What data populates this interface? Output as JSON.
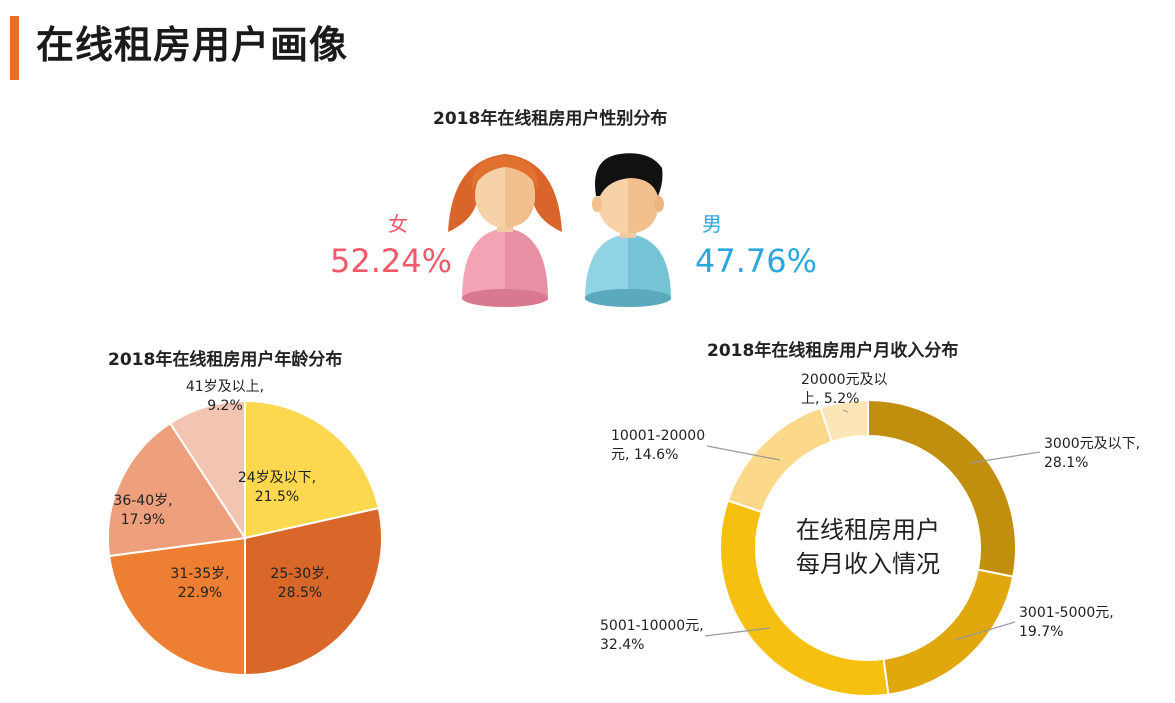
{
  "page": {
    "title": "在线租房用户画像"
  },
  "gender": {
    "title": "2018年在线租房用户性别分布",
    "female": {
      "label": "女",
      "pct": "52.24%",
      "value": 52.24
    },
    "male": {
      "label": "男",
      "pct": "47.76%",
      "value": 47.76
    }
  },
  "colors": {
    "accent": "#ee6b2d",
    "female": "#ef5a6b",
    "male": "#2aa7dc"
  },
  "chart_data": [
    {
      "type": "pie",
      "title": "2018年在线租房用户年龄分布",
      "slices": [
        {
          "label": "24岁及以下",
          "value": 21.5,
          "text": [
            "24岁及以下,",
            "21.5%"
          ],
          "color": "#fcd84f"
        },
        {
          "label": "25-30岁",
          "value": 28.5,
          "text": [
            "25-30岁,",
            "28.5%"
          ],
          "color": "#d9672a"
        },
        {
          "label": "31-35岁",
          "value": 22.9,
          "text": [
            "31-35岁,",
            "22.9%"
          ],
          "color": "#ee7f32"
        },
        {
          "label": "36-40岁",
          "value": 17.9,
          "text": [
            "36-40岁,",
            "17.9%"
          ],
          "color": "#eea07d"
        },
        {
          "label": "41岁及以上",
          "value": 9.2,
          "text": [
            "41岁及以上,",
            "9.2%"
          ],
          "color": "#f2c4b2"
        }
      ]
    },
    {
      "type": "donut",
      "title": "2018年在线租房用户月收入分布",
      "center_text": [
        "在线租房用户",
        "每月收入情况"
      ],
      "slices": [
        {
          "label": "3000元及以下",
          "value": 28.1,
          "text": [
            "3000元及以下,",
            "28.1%"
          ],
          "color": "#c18f0e"
        },
        {
          "label": "3001-5000元",
          "value": 19.7,
          "text": [
            "3001-5000元,",
            "19.7%"
          ],
          "color": "#e1a80d"
        },
        {
          "label": "5001-10000元",
          "value": 32.4,
          "text": [
            "5001-10000元,",
            "32.4%"
          ],
          "color": "#f5c00f"
        },
        {
          "label": "10001-20000元",
          "value": 14.6,
          "text": [
            "10001-20000",
            "元, 14.6%"
          ],
          "color": "#fbd88a"
        },
        {
          "label": "20000元及以上",
          "value": 5.2,
          "text": [
            "20000元及以",
            "上, 5.2%"
          ],
          "color": "#fde6b5"
        }
      ]
    }
  ]
}
